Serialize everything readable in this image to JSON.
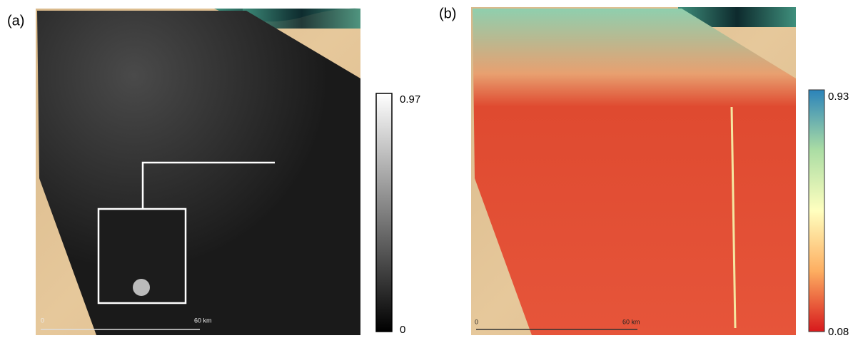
{
  "panels": [
    {
      "label": "(a)",
      "colorbar": {
        "max": "0.97",
        "min": "0"
      },
      "scale_bar": {
        "start": "0",
        "end": "60 km"
      }
    },
    {
      "label": "(b)",
      "colorbar": {
        "max": "0.93",
        "min": "0.08"
      },
      "scale_bar": {
        "start": "0",
        "end": "60 km"
      }
    }
  ]
}
